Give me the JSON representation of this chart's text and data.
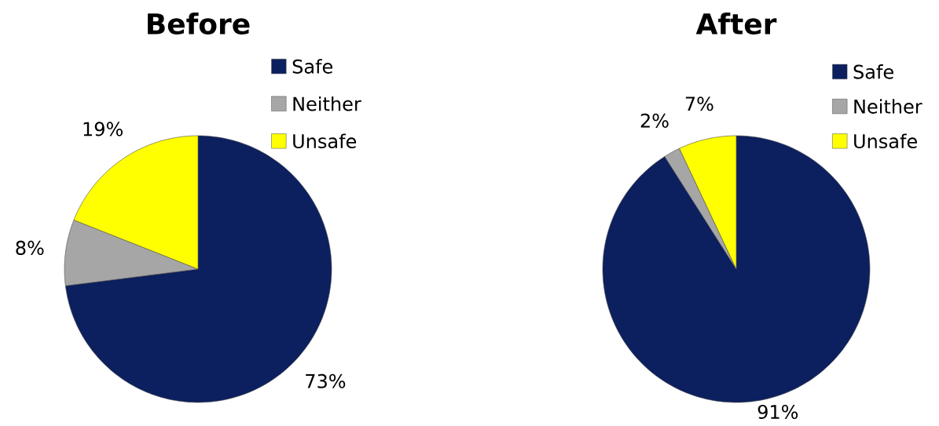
{
  "chart_data": [
    {
      "type": "pie",
      "title": "Before",
      "categories": [
        "Safe",
        "Neither",
        "Unsafe"
      ],
      "values": [
        73,
        8,
        19
      ],
      "colors": [
        "#0c1f5e",
        "#a6a6a6",
        "#ffff00"
      ],
      "value_labels": [
        "73%",
        "8%",
        "19%"
      ],
      "legend": "top right"
    },
    {
      "type": "pie",
      "title": "After",
      "categories": [
        "Safe",
        "Neither",
        "Unsafe"
      ],
      "values": [
        91,
        2,
        7
      ],
      "colors": [
        "#0c1f5e",
        "#a6a6a6",
        "#ffff00"
      ],
      "value_labels": [
        "91%",
        "2%",
        "7%"
      ],
      "legend": "top right"
    }
  ]
}
